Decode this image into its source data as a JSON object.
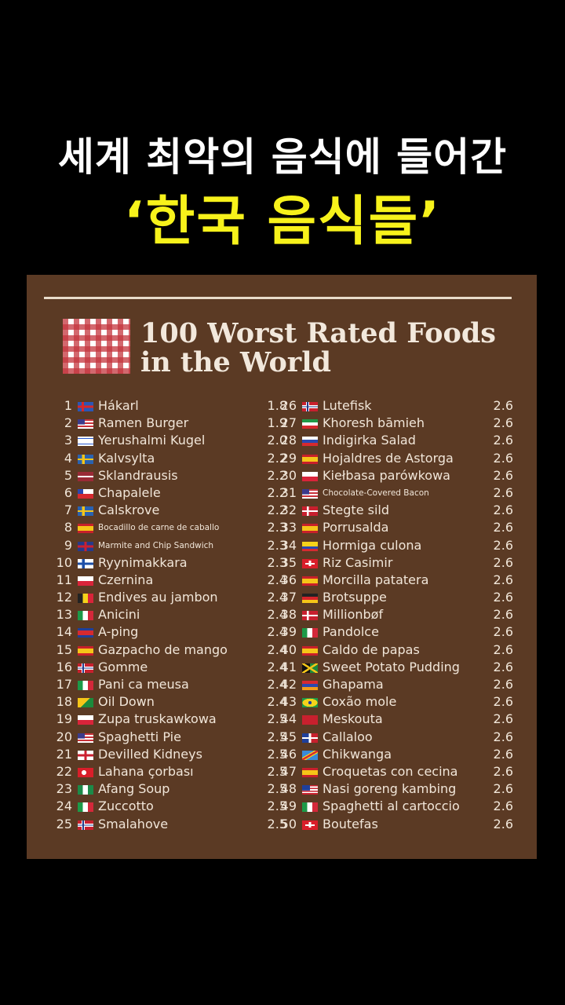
{
  "headline": {
    "line1": "세계 최악의 음식에 들어간",
    "line2": "‘한국 음식들’"
  },
  "card": {
    "title_line1": "100 Worst Rated Foods",
    "title_line2": "in the World"
  },
  "list": {
    "left": [
      {
        "rank": "1",
        "name": "Hákarl",
        "rating": "1.8",
        "flag": "iceland-flag-icon"
      },
      {
        "rank": "2",
        "name": "Ramen Burger",
        "rating": "1.9",
        "flag": "usa-flag-icon"
      },
      {
        "rank": "3",
        "name": "Yerushalmi Kugel",
        "rating": "2.0",
        "flag": "israel-flag-icon"
      },
      {
        "rank": "4",
        "name": "Kalvsylta",
        "rating": "2.2",
        "flag": "sweden-flag-icon"
      },
      {
        "rank": "5",
        "name": "Sklandrausis",
        "rating": "2.2",
        "flag": "latvia-flag-icon"
      },
      {
        "rank": "6",
        "name": "Chapalele",
        "rating": "2.2",
        "flag": "chile-flag-icon"
      },
      {
        "rank": "7",
        "name": "Calskrove",
        "rating": "2.2",
        "flag": "sweden-flag-icon"
      },
      {
        "rank": "8",
        "name": "Bocadillo de carne de caballo",
        "rating": "2.3",
        "flag": "spain-flag-icon",
        "small": true
      },
      {
        "rank": "9",
        "name": "Marmite and Chip Sandwich",
        "rating": "2.3",
        "flag": "uk-flag-icon",
        "small": true
      },
      {
        "rank": "10",
        "name": "Ryynimakkara",
        "rating": "2.3",
        "flag": "finland-flag-icon"
      },
      {
        "rank": "11",
        "name": "Czernina",
        "rating": "2.4",
        "flag": "poland-flag-icon"
      },
      {
        "rank": "12",
        "name": "Endives au jambon",
        "rating": "2.4",
        "flag": "belgium-flag-icon"
      },
      {
        "rank": "13",
        "name": "Anicini",
        "rating": "2.4",
        "flag": "italy-flag-icon"
      },
      {
        "rank": "14",
        "name": "A-ping",
        "rating": "2.4",
        "flag": "cambodia-flag-icon"
      },
      {
        "rank": "15",
        "name": "Gazpacho de mango",
        "rating": "2.4",
        "flag": "spain-flag-icon"
      },
      {
        "rank": "16",
        "name": "Gomme",
        "rating": "2.4",
        "flag": "norway-flag-icon"
      },
      {
        "rank": "17",
        "name": "Pani ca meusa",
        "rating": "2.4",
        "flag": "italy-flag-icon"
      },
      {
        "rank": "18",
        "name": "Oil Down",
        "rating": "2.4",
        "flag": "grenada-flag-icon"
      },
      {
        "rank": "19",
        "name": "Zupa truskawkowa",
        "rating": "2.5",
        "flag": "poland-flag-icon"
      },
      {
        "rank": "20",
        "name": "Spaghetti Pie",
        "rating": "2.5",
        "flag": "usa-flag-icon"
      },
      {
        "rank": "21",
        "name": "Devilled Kidneys",
        "rating": "2.5",
        "flag": "england-flag-icon"
      },
      {
        "rank": "22",
        "name": "Lahana çorbası",
        "rating": "2.5",
        "flag": "turkey-flag-icon"
      },
      {
        "rank": "23",
        "name": "Afang Soup",
        "rating": "2.5",
        "flag": "nigeria-flag-icon"
      },
      {
        "rank": "24",
        "name": "Zuccotto",
        "rating": "2.5",
        "flag": "italy-flag-icon"
      },
      {
        "rank": "25",
        "name": "Smalahove",
        "rating": "2.5",
        "flag": "norway-flag-icon"
      }
    ],
    "right": [
      {
        "rank": "26",
        "name": "Lutefisk",
        "rating": "2.6",
        "flag": "norway-flag-icon"
      },
      {
        "rank": "27",
        "name": "Khoresh bāmieh",
        "rating": "2.6",
        "flag": "iran-flag-icon"
      },
      {
        "rank": "28",
        "name": "Indigirka Salad",
        "rating": "2.6",
        "flag": "russia-flag-icon"
      },
      {
        "rank": "29",
        "name": "Hojaldres de Astorga",
        "rating": "2.6",
        "flag": "spain-flag-icon"
      },
      {
        "rank": "30",
        "name": "Kiełbasa parówkowa",
        "rating": "2.6",
        "flag": "poland-flag-icon"
      },
      {
        "rank": "31",
        "name": "Chocolate-Covered Bacon",
        "rating": "2.6",
        "flag": "usa-flag-icon",
        "small": true
      },
      {
        "rank": "32",
        "name": "Stegte sild",
        "rating": "2.6",
        "flag": "denmark-flag-icon"
      },
      {
        "rank": "33",
        "name": "Porrusalda",
        "rating": "2.6",
        "flag": "spain-flag-icon"
      },
      {
        "rank": "34",
        "name": "Hormiga culona",
        "rating": "2.6",
        "flag": "colombia-flag-icon"
      },
      {
        "rank": "35",
        "name": "Riz Casimir",
        "rating": "2.6",
        "flag": "switzerland-flag-icon"
      },
      {
        "rank": "36",
        "name": "Morcilla patatera",
        "rating": "2.6",
        "flag": "spain-flag-icon"
      },
      {
        "rank": "37",
        "name": "Brotsuppe",
        "rating": "2.6",
        "flag": "germany-flag-icon"
      },
      {
        "rank": "38",
        "name": "Millionbøf",
        "rating": "2.6",
        "flag": "denmark-flag-icon"
      },
      {
        "rank": "39",
        "name": "Pandolce",
        "rating": "2.6",
        "flag": "italy-flag-icon"
      },
      {
        "rank": "40",
        "name": "Caldo de papas",
        "rating": "2.6",
        "flag": "spain-flag-icon"
      },
      {
        "rank": "41",
        "name": "Sweet Potato Pudding",
        "rating": "2.6",
        "flag": "jamaica-flag-icon"
      },
      {
        "rank": "42",
        "name": "Ghapama",
        "rating": "2.6",
        "flag": "armenia-flag-icon"
      },
      {
        "rank": "43",
        "name": "Coxão mole",
        "rating": "2.6",
        "flag": "brazil-flag-icon"
      },
      {
        "rank": "44",
        "name": "Meskouta",
        "rating": "2.6",
        "flag": "morocco-flag-icon"
      },
      {
        "rank": "45",
        "name": "Callaloo",
        "rating": "2.6",
        "flag": "dominican-flag-icon"
      },
      {
        "rank": "46",
        "name": "Chikwanga",
        "rating": "2.6",
        "flag": "drc-flag-icon"
      },
      {
        "rank": "47",
        "name": "Croquetas con cecina",
        "rating": "2.6",
        "flag": "spain-flag-icon"
      },
      {
        "rank": "48",
        "name": "Nasi goreng kambing",
        "rating": "2.6",
        "flag": "malaysia-flag-icon"
      },
      {
        "rank": "49",
        "name": "Spaghetti al cartoccio",
        "rating": "2.6",
        "flag": "italy-flag-icon"
      },
      {
        "rank": "50",
        "name": "Boutefas",
        "rating": "2.6",
        "flag": "switzerland-flag-icon"
      }
    ]
  },
  "colors": {
    "card_bg": "#5b3a24",
    "headline_yellow": "#f7f21b",
    "text": "#f1e6d9"
  }
}
